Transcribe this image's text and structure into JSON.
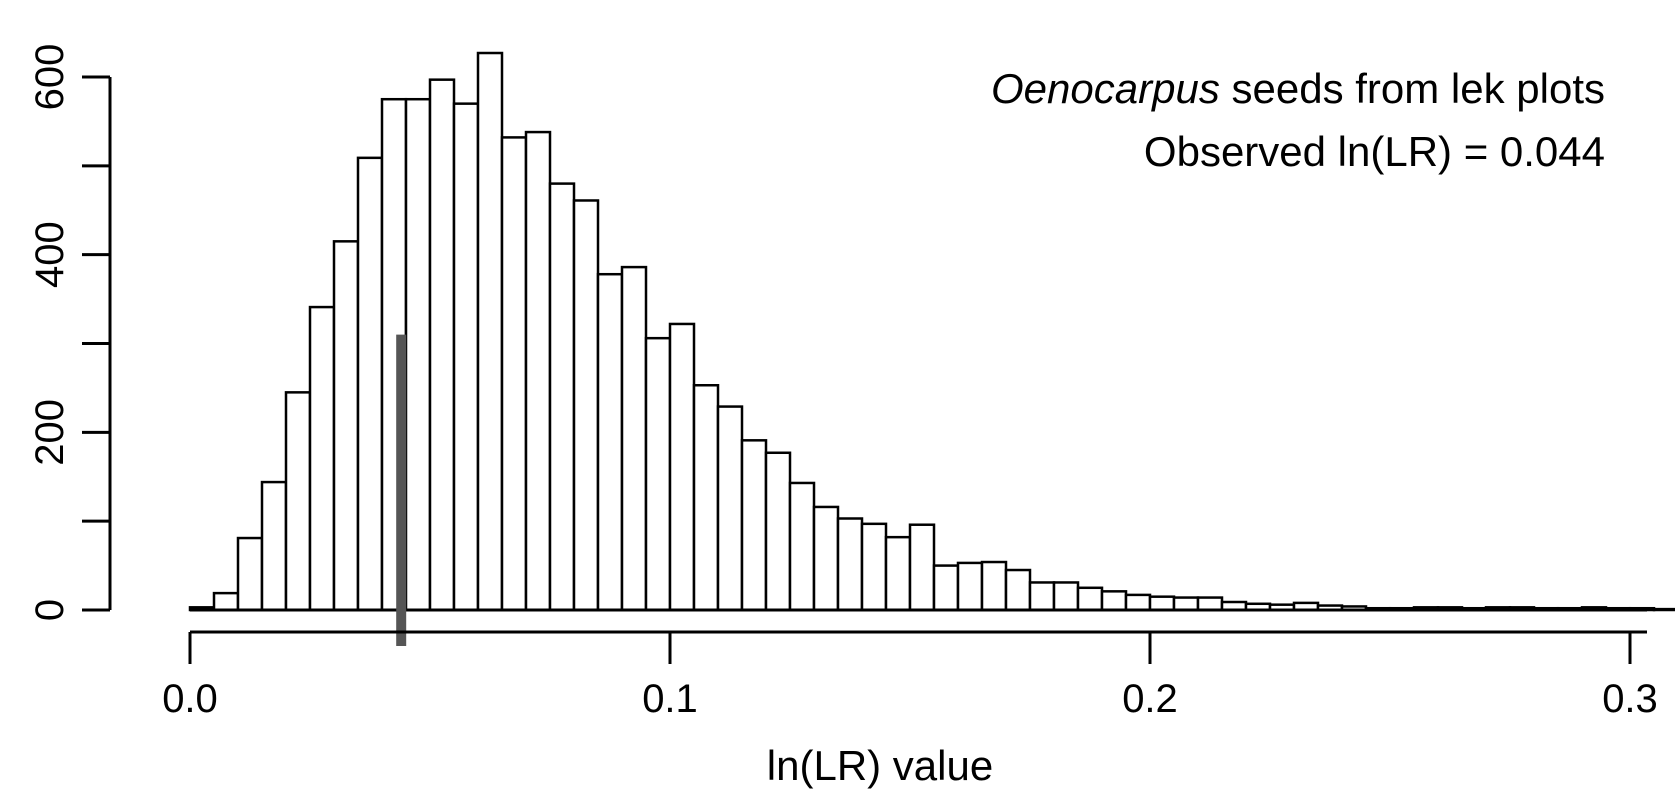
{
  "chart_data": {
    "type": "bar",
    "subtype": "histogram",
    "title": "",
    "xlabel": "ln(LR) value",
    "ylabel": "",
    "xlim": [
      0.0,
      0.3
    ],
    "ylim": [
      0,
      600
    ],
    "x_ticks": [
      "0.0",
      "0.1",
      "0.2",
      "0.3"
    ],
    "y_ticks": [
      "0",
      "200",
      "400",
      "600"
    ],
    "grid": false,
    "bin_width": 0.005,
    "bin_start": 0.0,
    "values": [
      3,
      19,
      81,
      144,
      245,
      341,
      415,
      509,
      575,
      575,
      597,
      570,
      627,
      532,
      538,
      480,
      461,
      378,
      386,
      306,
      322,
      253,
      229,
      191,
      177,
      143,
      116,
      103,
      97,
      82,
      96,
      50,
      53,
      54,
      45,
      31,
      31,
      25,
      21,
      17,
      15,
      14,
      14,
      9,
      7,
      6,
      8,
      5,
      4,
      2,
      2,
      3,
      3,
      2,
      3,
      3,
      2,
      2,
      3,
      2,
      2,
      1,
      1
    ],
    "observed_marker": {
      "x": 0.044,
      "height": 310,
      "color": "#555555"
    },
    "annotation": {
      "line1_italic": "Oenocarpus",
      "line1_rest": " seeds from lek plots",
      "line2": "Observed ln(LR) = 0.044"
    },
    "colors": {
      "bar_fill": "#ffffff",
      "bar_stroke": "#000000",
      "marker": "#555555"
    }
  }
}
